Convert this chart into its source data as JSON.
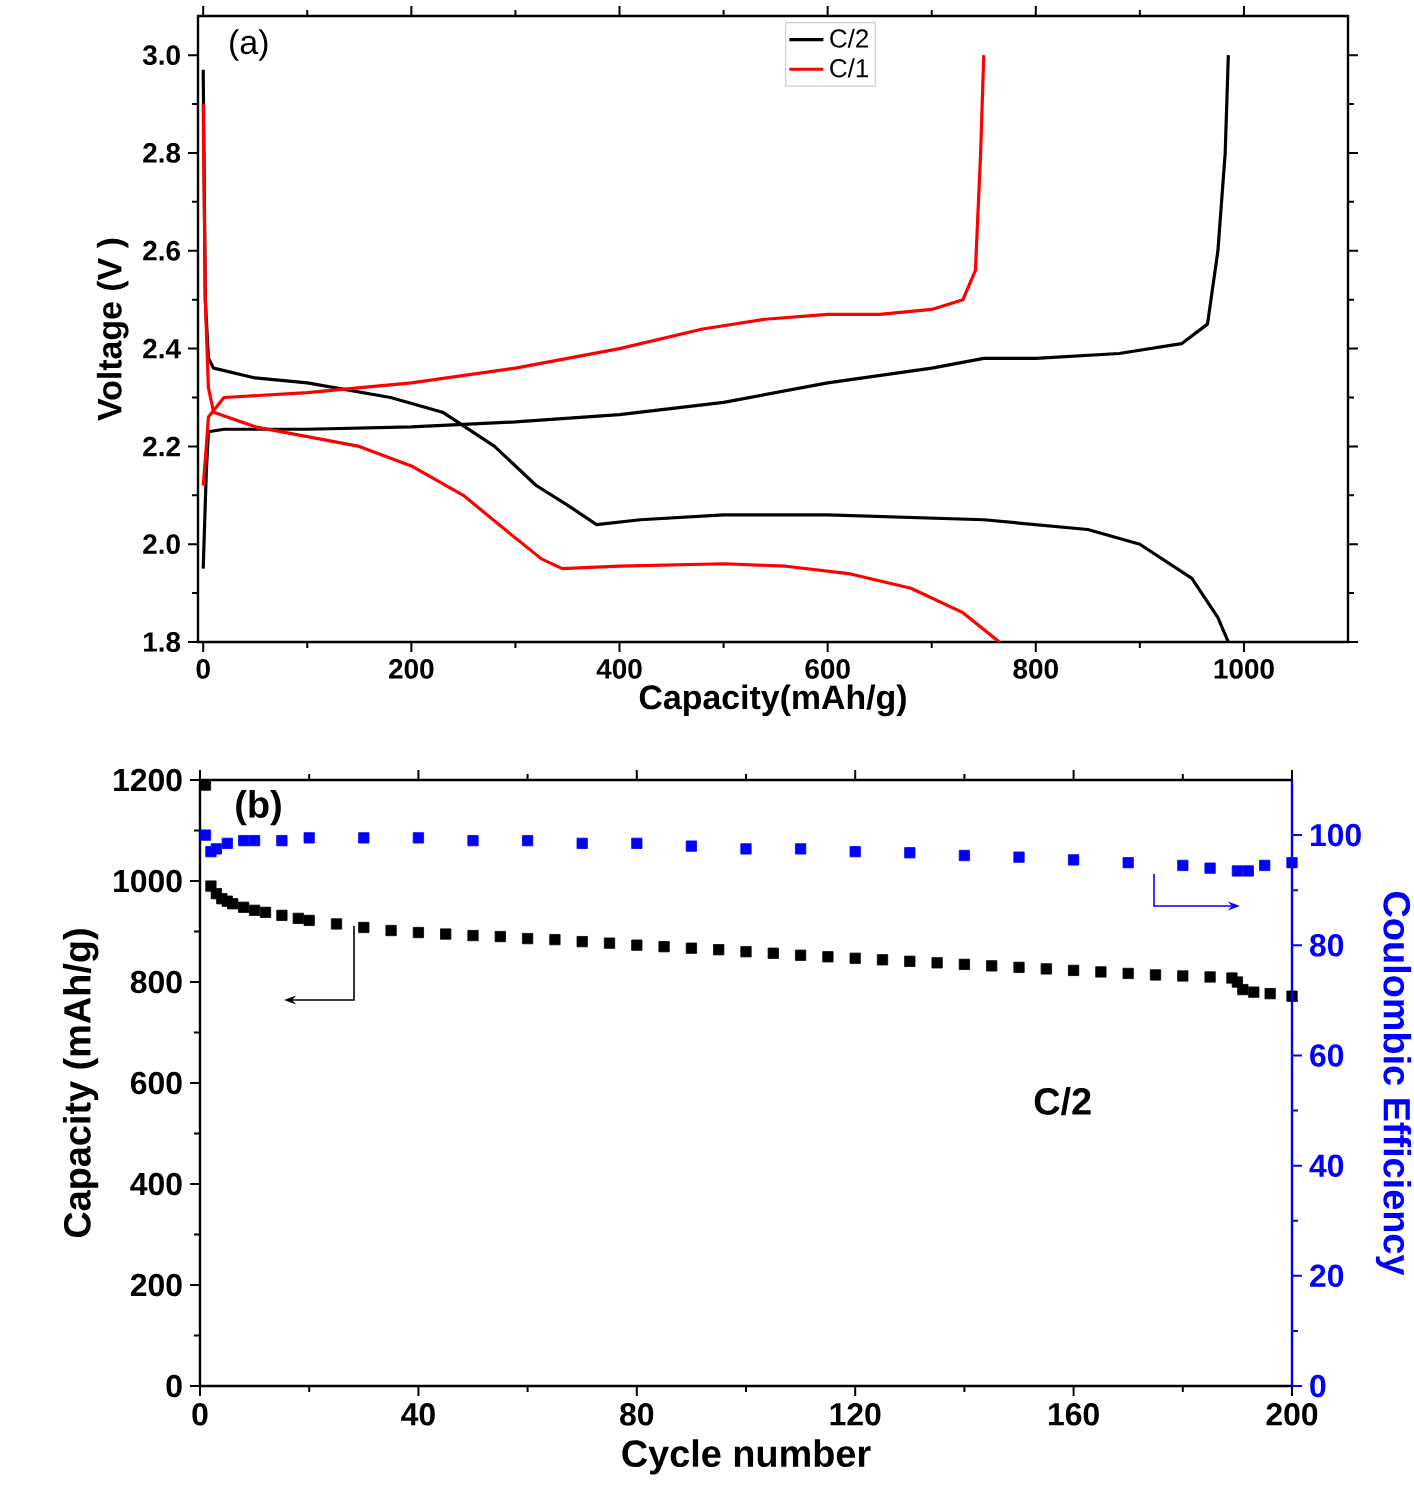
{
  "chart_data": [
    {
      "type": "line",
      "xlabel": "Capacity(mAh/g)",
      "ylabel": "Voltage (V )",
      "annotations": [
        "(a)"
      ],
      "xlim": [
        -5,
        1100
      ],
      "ylim": [
        1.8,
        3.08
      ],
      "xticks": [
        0,
        200,
        400,
        600,
        800,
        1000
      ],
      "yticks": [
        1.8,
        {
          "value": 2,
          "label": "2.0"
        },
        2.2,
        2.4,
        2.6,
        2.8,
        {
          "value": 3,
          "label": "3.0"
        }
      ],
      "legend": "top",
      "grid": false,
      "series": [
        {
          "name": "C/2",
          "color": "#000000",
          "x": [
            0,
            2,
            5,
            10,
            50,
            100,
            180,
            230,
            280,
            320,
            350,
            378,
            420,
            500,
            600,
            750,
            850,
            900,
            950,
            975,
            985
          ],
          "values": [
            2.97,
            2.5,
            2.38,
            2.36,
            2.34,
            2.33,
            2.3,
            2.27,
            2.2,
            2.12,
            2.08,
            2.04,
            2.05,
            2.06,
            2.06,
            2.05,
            2.03,
            2.0,
            1.93,
            1.85,
            1.8
          ]
        },
        {
          "color": "#000000",
          "x": [
            0,
            3,
            5,
            20,
            100,
            200,
            300,
            400,
            500,
            600,
            700,
            750,
            800,
            880,
            940,
            965,
            975,
            982,
            985
          ],
          "values": [
            1.95,
            2.15,
            2.23,
            2.235,
            2.235,
            2.24,
            2.25,
            2.265,
            2.29,
            2.33,
            2.36,
            2.38,
            2.38,
            2.39,
            2.41,
            2.45,
            2.6,
            2.8,
            3.0
          ]
        },
        {
          "name": "C/1",
          "color": "#ff0000",
          "x": [
            0,
            2,
            5,
            10,
            50,
            100,
            150,
            200,
            250,
            290,
            325,
            345,
            400,
            500,
            560,
            620,
            680,
            730,
            765
          ],
          "values": [
            2.9,
            2.5,
            2.32,
            2.27,
            2.24,
            2.22,
            2.2,
            2.16,
            2.1,
            2.03,
            1.97,
            1.95,
            1.955,
            1.96,
            1.955,
            1.94,
            1.91,
            1.86,
            1.8
          ]
        },
        {
          "color": "#ff0000",
          "x": [
            0,
            3,
            5,
            20,
            100,
            200,
            300,
            400,
            480,
            540,
            600,
            650,
            700,
            730,
            742,
            747,
            750
          ],
          "values": [
            2.12,
            2.2,
            2.26,
            2.3,
            2.31,
            2.33,
            2.36,
            2.4,
            2.44,
            2.46,
            2.47,
            2.47,
            2.48,
            2.5,
            2.56,
            2.8,
            3.0
          ]
        }
      ]
    },
    {
      "type": "scatter",
      "xlabel": "Cycle number",
      "ylabel": "Capacity (mAh/g)",
      "y2label": "Coulombic Efficiency",
      "annotations": [
        "(b)",
        "C/2"
      ],
      "marker": "square",
      "xlim": [
        0,
        200
      ],
      "ylim": [
        0,
        1200
      ],
      "y2lim": [
        0,
        110
      ],
      "xticks": [
        0,
        40,
        80,
        120,
        160,
        200
      ],
      "yticks": [
        0,
        200,
        400,
        600,
        800,
        1000,
        1200
      ],
      "y2ticks": [
        0,
        20,
        40,
        60,
        80,
        100
      ],
      "grid": false,
      "series": [
        {
          "color": "#000000",
          "x": [
            1,
            2,
            3,
            4,
            5,
            6,
            8,
            10,
            12,
            15,
            18,
            20,
            25,
            30,
            35,
            40,
            45,
            50,
            55,
            60,
            65,
            70,
            75,
            80,
            85,
            90,
            95,
            100,
            105,
            110,
            115,
            120,
            125,
            130,
            135,
            140,
            145,
            150,
            155,
            160,
            165,
            170,
            175,
            180,
            185,
            189,
            190,
            191,
            193,
            196,
            200
          ],
          "values": [
            1190,
            990,
            975,
            965,
            960,
            955,
            948,
            942,
            938,
            932,
            926,
            922,
            915,
            908,
            902,
            898,
            895,
            892,
            890,
            886,
            884,
            880,
            877,
            873,
            870,
            867,
            864,
            860,
            857,
            853,
            850,
            847,
            844,
            841,
            838,
            835,
            832,
            829,
            826,
            823,
            820,
            817,
            814,
            812,
            810,
            808,
            800,
            785,
            780,
            777,
            772
          ]
        },
        {
          "color": "#0000ff",
          "axis": "y2",
          "x": [
            1,
            2,
            3,
            5,
            8,
            10,
            15,
            20,
            30,
            40,
            50,
            60,
            70,
            80,
            90,
            100,
            110,
            120,
            130,
            140,
            150,
            160,
            170,
            180,
            185,
            190,
            192,
            195,
            200
          ],
          "values": [
            100,
            97,
            97.5,
            98.5,
            99,
            99,
            99,
            99.5,
            99.5,
            99.5,
            99,
            99,
            98.5,
            98.5,
            98,
            97.5,
            97.5,
            97,
            96.8,
            96.3,
            96,
            95.5,
            95,
            94.5,
            94,
            93.5,
            93.5,
            94.5,
            95
          ]
        }
      ]
    }
  ]
}
